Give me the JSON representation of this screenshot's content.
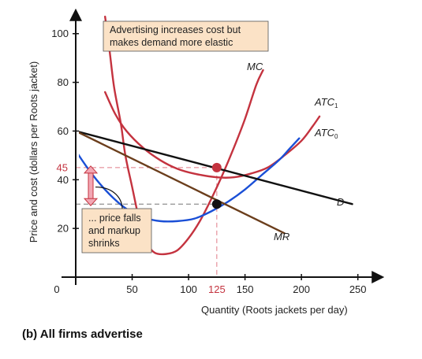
{
  "caption": "(b) All firms advertise",
  "chart_data": {
    "type": "line",
    "xlabel": "Quantity (Roots jackets per day)",
    "ylabel": "Price and cost (dollars per Roots jacket)",
    "xlim": [
      0,
      260
    ],
    "ylim": [
      0,
      108
    ],
    "x_ticks": [
      0,
      50,
      100,
      150,
      200,
      250
    ],
    "y_ticks": [
      20,
      40,
      60,
      80,
      100
    ],
    "highlight": {
      "x": 125,
      "y": 45,
      "x_label": "125",
      "y_label": "45"
    },
    "series": [
      {
        "name": "MC",
        "color": "#c4333f",
        "points": [
          [
            26,
            107
          ],
          [
            30,
            93
          ],
          [
            34,
            78
          ],
          [
            40,
            63
          ],
          [
            44,
            50
          ],
          [
            50,
            37
          ],
          [
            57,
            22
          ],
          [
            63,
            14
          ],
          [
            70,
            10
          ],
          [
            80,
            9.5
          ],
          [
            90,
            11
          ],
          [
            100,
            16
          ],
          [
            110,
            23
          ],
          [
            120,
            32
          ],
          [
            130,
            42
          ],
          [
            140,
            53
          ],
          [
            150,
            65
          ],
          [
            160,
            79
          ],
          [
            166,
            85
          ]
        ]
      },
      {
        "name": "ATC1",
        "label": "ATC",
        "subscript": "1",
        "color": "#c4333f",
        "points": [
          [
            26,
            76
          ],
          [
            35,
            67
          ],
          [
            45,
            60
          ],
          [
            60,
            53
          ],
          [
            75,
            48
          ],
          [
            90,
            44.5
          ],
          [
            105,
            42.5
          ],
          [
            125,
            41
          ],
          [
            140,
            41
          ],
          [
            155,
            42.5
          ],
          [
            170,
            45
          ],
          [
            185,
            50
          ],
          [
            200,
            56
          ],
          [
            210,
            62
          ],
          [
            216,
            66
          ]
        ]
      },
      {
        "name": "ATC0",
        "label": "ATC",
        "subscript": "0",
        "color": "#1a4fd6",
        "points": [
          [
            -24,
            75
          ],
          [
            -15,
            64
          ],
          [
            0,
            52
          ],
          [
            15,
            42
          ],
          [
            30,
            34
          ],
          [
            45,
            28
          ],
          [
            60,
            24.5
          ],
          [
            75,
            23
          ],
          [
            90,
            23
          ],
          [
            105,
            24
          ],
          [
            120,
            27
          ],
          [
            135,
            31
          ],
          [
            150,
            36
          ],
          [
            165,
            42
          ],
          [
            180,
            48
          ],
          [
            190,
            53
          ],
          [
            198,
            57
          ]
        ]
      },
      {
        "name": "D",
        "label": "D",
        "color": "#111111",
        "points": [
          [
            0,
            60
          ],
          [
            245,
            30
          ]
        ]
      },
      {
        "name": "MR",
        "label": "MR",
        "color": "#6b3e1c",
        "points": [
          [
            0,
            60
          ],
          [
            185,
            18
          ]
        ]
      }
    ],
    "equilibrium": [
      {
        "x": 125,
        "y": 45,
        "color": "#c4333f"
      },
      {
        "x": 125,
        "y": 30,
        "color": "#111111"
      }
    ],
    "annotations": [
      {
        "id": "top",
        "lines": [
          "Advertising increases cost but",
          "makes demand more elastic"
        ]
      },
      {
        "id": "bottom",
        "lines": [
          "... price falls",
          "and markup",
          "shrinks"
        ]
      }
    ]
  }
}
